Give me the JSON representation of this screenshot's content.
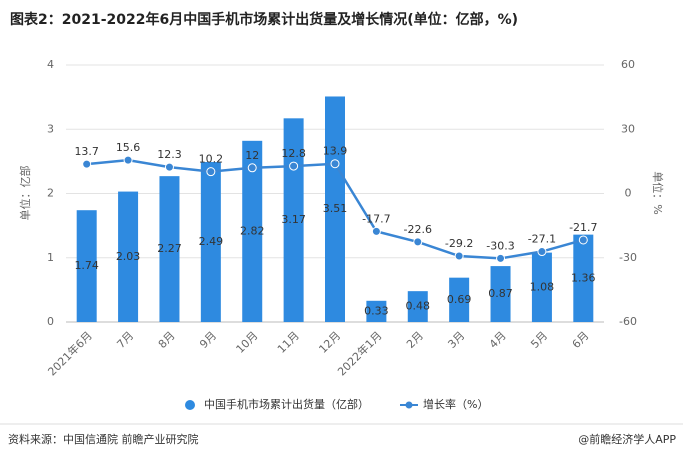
{
  "chart_data": {
    "type": "bar-line",
    "title": "图表2：2021-2022年6月中国手机市场累计出货量及增长情况(单位：亿部，%)",
    "ylabel": "单位：亿部",
    "y2label": "单位：%",
    "categories": [
      "2021年6月",
      "7月",
      "8月",
      "9月",
      "10月",
      "11月",
      "12月",
      "2022年1月",
      "2月",
      "3月",
      "4月",
      "5月",
      "6月"
    ],
    "series": [
      {
        "name": "中国手机市场累计出货量（亿部）",
        "type": "bar",
        "color": "#2e8ae0",
        "values": [
          1.74,
          2.03,
          2.27,
          2.49,
          2.82,
          3.17,
          3.51,
          0.33,
          0.48,
          0.69,
          0.87,
          1.08,
          1.36
        ]
      },
      {
        "name": "增长率（%）",
        "type": "line",
        "axis": "y2",
        "color": "#3a86d4",
        "values": [
          13.7,
          15.6,
          12.3,
          10.2,
          12,
          12.8,
          13.9,
          -17.7,
          -22.6,
          -29.2,
          -30.3,
          -27.1,
          -21.7
        ]
      }
    ],
    "ylim": [
      0,
      4
    ],
    "yticks": [
      0,
      1,
      2,
      3,
      4
    ],
    "y2lim": [
      -60,
      60
    ],
    "y2ticks": [
      -60,
      -30,
      0,
      30,
      60
    ],
    "grid": true,
    "legend": "bottom",
    "source": "资料来源：中国信通院 前瞻产业研究院",
    "credit": "@前瞻经济学人APP"
  }
}
